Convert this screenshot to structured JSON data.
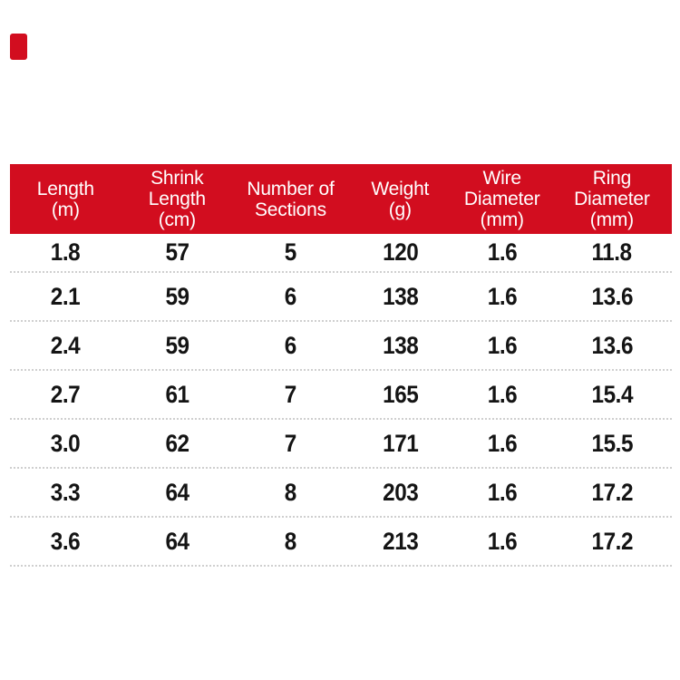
{
  "colors": {
    "header_bg": "#d20d1f",
    "header_text": "#ffffff",
    "row_text": "#141414",
    "separator": "#cfcfcf",
    "corner_accent": "#d20d1f"
  },
  "chart_data": {
    "type": "table",
    "title": "",
    "columns": [
      {
        "label": "Length\n(m)"
      },
      {
        "label": "Shrink\nLength\n(cm)"
      },
      {
        "label": "Number of\nSections"
      },
      {
        "label": "Weight\n(g)"
      },
      {
        "label": "Wire\nDiameter\n(mm)"
      },
      {
        "label": "Ring\nDiameter\n(mm)"
      }
    ],
    "rows": [
      [
        "1.8",
        "57",
        "5",
        "120",
        "1.6",
        "11.8"
      ],
      [
        "2.1",
        "59",
        "6",
        "138",
        "1.6",
        "13.6"
      ],
      [
        "2.4",
        "59",
        "6",
        "138",
        "1.6",
        "13.6"
      ],
      [
        "2.7",
        "61",
        "7",
        "165",
        "1.6",
        "15.4"
      ],
      [
        "3.0",
        "62",
        "7",
        "171",
        "1.6",
        "15.5"
      ],
      [
        "3.3",
        "64",
        "8",
        "203",
        "1.6",
        "17.2"
      ],
      [
        "3.6",
        "64",
        "8",
        "213",
        "1.6",
        "17.2"
      ]
    ]
  }
}
